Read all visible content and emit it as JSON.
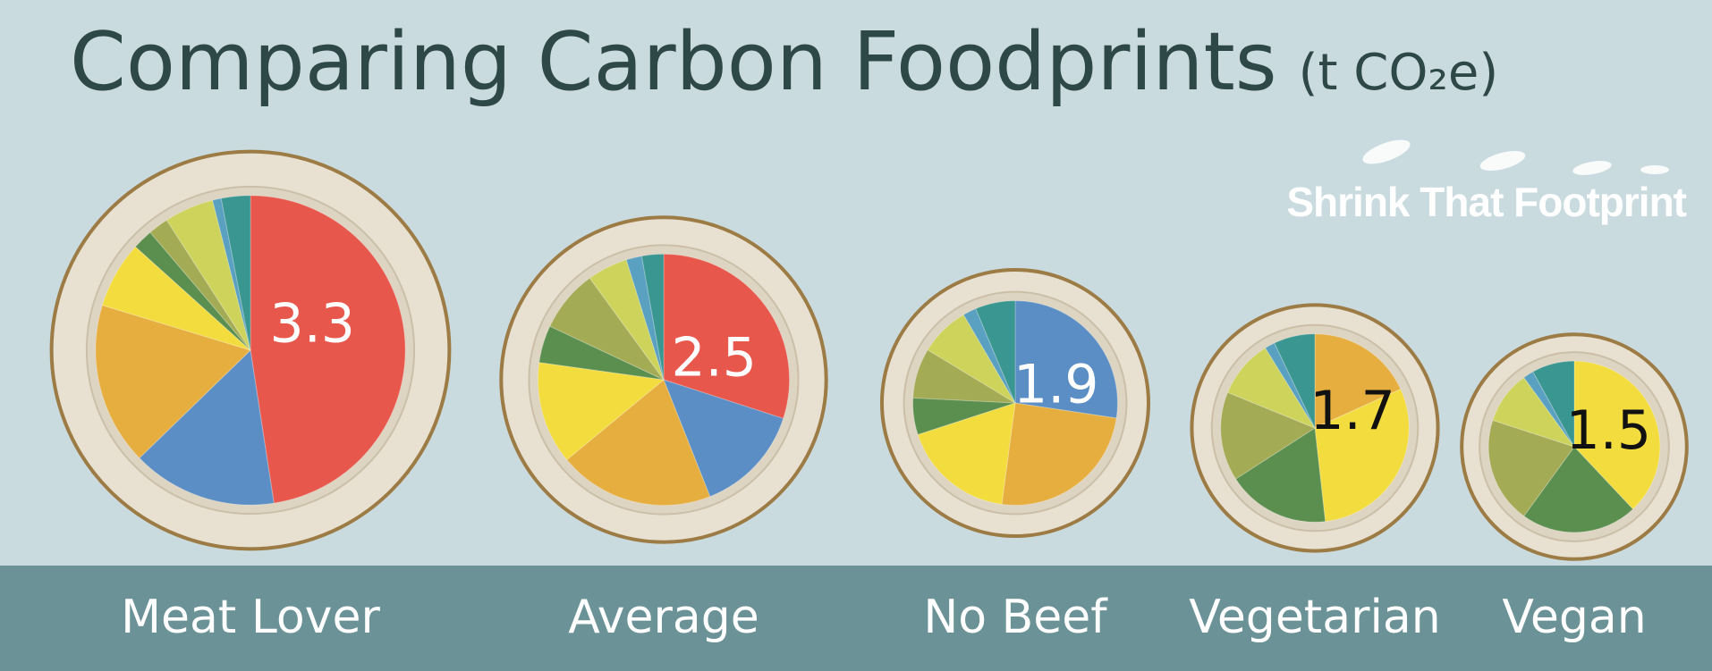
{
  "title": "Comparing Carbon Foodprints",
  "unit": "(t CO₂e)",
  "brand": "Shrink That Footprint",
  "chart_data": [
    {
      "type": "pie",
      "title": "Meat Lover",
      "total": 3.3,
      "label_color": "#ffffff",
      "values": [
        1.57,
        0.5,
        0.56,
        0.23,
        0.07,
        0.07,
        0.17,
        0.03,
        0.1
      ],
      "colors": [
        "#e8574c",
        "#5b8ec4",
        "#e6ae3f",
        "#f3dc3e",
        "#5b8f4f",
        "#a3ab55",
        "#cdd35b",
        "#5aa0c0",
        "#3a9690"
      ]
    },
    {
      "type": "pie",
      "title": "Average",
      "total": 2.5,
      "label_color": "#ffffff",
      "values": [
        0.75,
        0.35,
        0.5,
        0.33,
        0.12,
        0.2,
        0.13,
        0.05,
        0.07
      ],
      "colors": [
        "#e8574c",
        "#5b8ec4",
        "#e6ae3f",
        "#f3dc3e",
        "#5b8f4f",
        "#a3ab55",
        "#cdd35b",
        "#5aa0c0",
        "#3a9690"
      ]
    },
    {
      "type": "pie",
      "title": "No Beef",
      "total": 1.9,
      "label_color": "#ffffff",
      "values": [
        0.52,
        0.47,
        0.34,
        0.11,
        0.15,
        0.15,
        0.04,
        0.12
      ],
      "colors": [
        "#5b8ec4",
        "#e6ae3f",
        "#f3dc3e",
        "#5b8f4f",
        "#a3ab55",
        "#cdd35b",
        "#5aa0c0",
        "#3a9690"
      ]
    },
    {
      "type": "pie",
      "title": "Vegetarian",
      "total": 1.7,
      "label_color": "#111111",
      "values": [
        0.31,
        0.51,
        0.3,
        0.26,
        0.17,
        0.03,
        0.12
      ],
      "colors": [
        "#e6ae3f",
        "#f3dc3e",
        "#5b8f4f",
        "#a3ab55",
        "#cdd35b",
        "#5aa0c0",
        "#3a9690"
      ]
    },
    {
      "type": "pie",
      "title": "Vegan",
      "total": 1.5,
      "label_color": "#111111",
      "values": [
        0.57,
        0.33,
        0.3,
        0.15,
        0.03,
        0.12
      ],
      "colors": [
        "#f3dc3e",
        "#5b8f4f",
        "#a3ab55",
        "#cdd35b",
        "#5aa0c0",
        "#3a9690"
      ]
    }
  ]
}
